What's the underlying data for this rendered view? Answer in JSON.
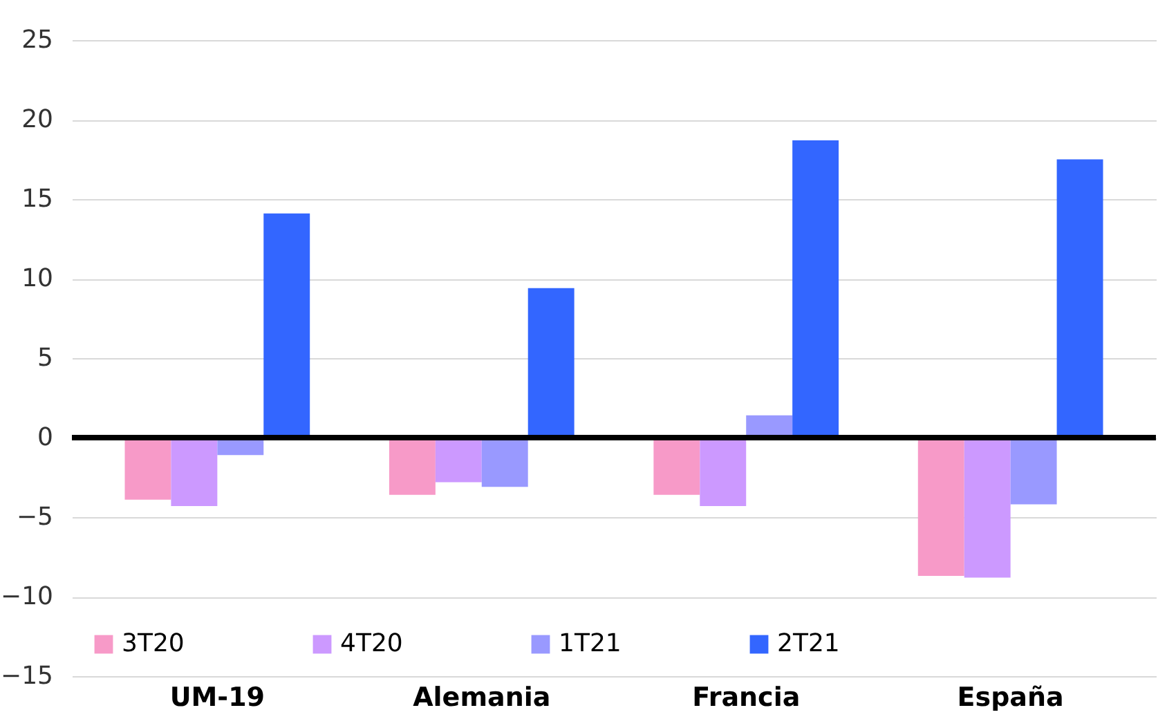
{
  "chart_data": {
    "type": "bar",
    "categories": [
      "UM-19",
      "Alemania",
      "Francia",
      "España"
    ],
    "series": [
      {
        "name": "3T20",
        "color": "#f79ac8",
        "values": [
          -3.9,
          -3.6,
          -3.6,
          -8.7
        ]
      },
      {
        "name": "4T20",
        "color": "#cc99ff",
        "values": [
          -4.3,
          -2.8,
          -4.3,
          -8.8
        ]
      },
      {
        "name": "1T21",
        "color": "#9999ff",
        "values": [
          -1.1,
          -3.1,
          1.4,
          -4.2
        ]
      },
      {
        "name": "2T21",
        "color": "#3366ff",
        "values": [
          14.1,
          9.4,
          18.7,
          17.5
        ]
      }
    ],
    "ylim": [
      -15,
      25
    ],
    "yticks": [
      -15,
      -10,
      -5,
      0,
      5,
      10,
      15,
      20,
      25
    ],
    "ref_lines": [
      {
        "axis": "y",
        "value": 0,
        "color": "#000000"
      }
    ],
    "grid": "y",
    "legend": "bottom left"
  }
}
